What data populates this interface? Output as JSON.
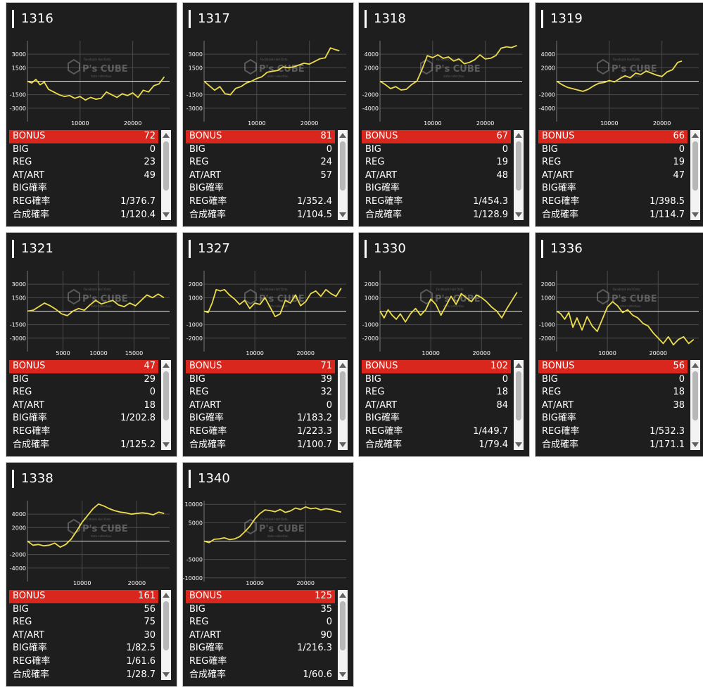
{
  "watermark": {
    "name": "P's CUBE",
    "tagline": "Facebook Hall Data",
    "sub": "data collection"
  },
  "colors": {
    "line": "#ecdc4c",
    "bonus_bg": "#d9271e",
    "card_bg": "#1e1e1e"
  },
  "stat_labels": {
    "bonus": "BONUS",
    "big": "BIG",
    "reg": "REG",
    "at": "AT/ART",
    "big_rate": "BIG確率",
    "reg_rate": "REG確率",
    "total_rate": "合成確率"
  },
  "cards": [
    {
      "id": "1316",
      "stats": {
        "bonus": "72",
        "big": "0",
        "reg": "23",
        "at": "49",
        "big_rate": "",
        "reg_rate": "1/376.7",
        "total_rate": "1/120.4"
      }
    },
    {
      "id": "1317",
      "stats": {
        "bonus": "81",
        "big": "0",
        "reg": "24",
        "at": "57",
        "big_rate": "",
        "reg_rate": "1/352.4",
        "total_rate": "1/104.5"
      }
    },
    {
      "id": "1318",
      "stats": {
        "bonus": "67",
        "big": "0",
        "reg": "19",
        "at": "48",
        "big_rate": "",
        "reg_rate": "1/454.3",
        "total_rate": "1/128.9"
      }
    },
    {
      "id": "1319",
      "stats": {
        "bonus": "66",
        "big": "0",
        "reg": "19",
        "at": "47",
        "big_rate": "",
        "reg_rate": "1/398.5",
        "total_rate": "1/114.7"
      }
    },
    {
      "id": "1321",
      "stats": {
        "bonus": "47",
        "big": "29",
        "reg": "0",
        "at": "18",
        "big_rate": "1/202.8",
        "reg_rate": "",
        "total_rate": "1/125.2"
      }
    },
    {
      "id": "1327",
      "stats": {
        "bonus": "71",
        "big": "39",
        "reg": "32",
        "at": "0",
        "big_rate": "1/183.2",
        "reg_rate": "1/223.3",
        "total_rate": "1/100.7"
      }
    },
    {
      "id": "1330",
      "stats": {
        "bonus": "102",
        "big": "0",
        "reg": "18",
        "at": "84",
        "big_rate": "",
        "reg_rate": "1/449.7",
        "total_rate": "1/79.4"
      }
    },
    {
      "id": "1336",
      "stats": {
        "bonus": "56",
        "big": "0",
        "reg": "18",
        "at": "38",
        "big_rate": "",
        "reg_rate": "1/532.3",
        "total_rate": "1/171.1"
      }
    },
    {
      "id": "1338",
      "stats": {
        "bonus": "161",
        "big": "56",
        "reg": "75",
        "at": "30",
        "big_rate": "1/82.5",
        "reg_rate": "1/61.6",
        "total_rate": "1/28.7"
      }
    },
    {
      "id": "1340",
      "stats": {
        "bonus": "125",
        "big": "35",
        "reg": "0",
        "at": "90",
        "big_rate": "1/216.3",
        "reg_rate": "",
        "total_rate": "1/60.6"
      }
    }
  ],
  "chart_data": [
    {
      "type": "line",
      "title": "1316",
      "xlim": [
        0,
        27000
      ],
      "ylim": [
        -4500,
        4500
      ],
      "yticks": [
        3000,
        1500,
        -1500,
        -3000
      ],
      "ytick_labels": [
        "3000",
        "1500",
        "-1500",
        "-3000"
      ],
      "xticks": [
        10000,
        20000
      ],
      "xtick_labels": [
        "10000",
        "20000"
      ],
      "x": [
        0,
        800,
        1600,
        2400,
        3200,
        4000,
        5000,
        6000,
        7000,
        8000,
        9000,
        10000,
        11000,
        12000,
        13000,
        14000,
        15000,
        16000,
        17000,
        18000,
        19000,
        20000,
        21000,
        22000,
        23000,
        24000,
        25000,
        26000
      ],
      "y": [
        0,
        -200,
        200,
        -400,
        -100,
        -900,
        -1200,
        -1500,
        -1700,
        -1600,
        -1900,
        -1700,
        -2100,
        -1800,
        -2000,
        -1900,
        -1200,
        -1500,
        -1800,
        -1400,
        -1600,
        -1300,
        -1800,
        -1000,
        -1200,
        -500,
        -300,
        500
      ]
    },
    {
      "type": "line",
      "title": "1317",
      "xlim": [
        0,
        27000
      ],
      "ylim": [
        -4500,
        4500
      ],
      "yticks": [
        3000,
        1500,
        -1500,
        -3000
      ],
      "ytick_labels": [
        "3000",
        "1500",
        "-1500",
        "-3000"
      ],
      "xticks": [
        10000,
        20000
      ],
      "xtick_labels": [
        "10000",
        "20000"
      ],
      "x": [
        0,
        1000,
        2000,
        3000,
        4000,
        5000,
        6000,
        7000,
        8000,
        9000,
        10000,
        11000,
        12000,
        13000,
        14000,
        15000,
        16000,
        17000,
        18000,
        19000,
        20000,
        21000,
        22000,
        23000,
        24000,
        25000,
        25700
      ],
      "y": [
        0,
        -500,
        -1000,
        -600,
        -1400,
        -1500,
        -800,
        -600,
        -200,
        0,
        300,
        500,
        1000,
        1100,
        1200,
        1600,
        1500,
        1600,
        1800,
        2000,
        1900,
        2200,
        2500,
        2600,
        3700,
        3500,
        3400
      ]
    },
    {
      "type": "line",
      "title": "1318",
      "xlim": [
        0,
        27000
      ],
      "ylim": [
        -6000,
        6000
      ],
      "yticks": [
        4000,
        2000,
        -2000,
        -4000
      ],
      "ytick_labels": [
        "4000",
        "2000",
        "-2000",
        "-4000"
      ],
      "xticks": [
        10000,
        20000
      ],
      "xtick_labels": [
        "10000",
        "20000"
      ],
      "x": [
        0,
        1000,
        2000,
        3000,
        4000,
        5000,
        6000,
        7000,
        8000,
        9000,
        10000,
        11000,
        12000,
        13000,
        14000,
        15000,
        16000,
        17000,
        18000,
        19000,
        20000,
        21000,
        22000,
        23000,
        24000,
        25000,
        26000
      ],
      "y": [
        0,
        -500,
        -1100,
        -800,
        -1300,
        -1200,
        -500,
        0,
        1800,
        3800,
        3500,
        3900,
        3400,
        3600,
        3000,
        3300,
        2600,
        2800,
        3200,
        3900,
        3300,
        3400,
        3800,
        4900,
        5100,
        5000,
        5300
      ]
    },
    {
      "type": "line",
      "title": "1319",
      "xlim": [
        0,
        27000
      ],
      "ylim": [
        -6000,
        6000
      ],
      "yticks": [
        4000,
        2000,
        -2000,
        -4000
      ],
      "ytick_labels": [
        "4000",
        "2000",
        "-2000",
        "-4000"
      ],
      "xticks": [
        10000,
        20000
      ],
      "xtick_labels": [
        "10000",
        "20000"
      ],
      "x": [
        0,
        1000,
        2000,
        3000,
        4000,
        5000,
        6000,
        7000,
        8000,
        9000,
        10000,
        11000,
        12000,
        13000,
        14000,
        15000,
        16000,
        17000,
        18000,
        19000,
        20000,
        21000,
        22000,
        23000,
        23800
      ],
      "y": [
        0,
        -500,
        -900,
        -1100,
        -1300,
        -1500,
        -1200,
        -700,
        -300,
        -200,
        100,
        -100,
        400,
        800,
        500,
        1200,
        1000,
        1500,
        1200,
        900,
        700,
        1400,
        1700,
        2800,
        3000
      ]
    },
    {
      "type": "line",
      "title": "1321",
      "xlim": [
        0,
        20000
      ],
      "ylim": [
        -4500,
        4500
      ],
      "yticks": [
        3000,
        1500,
        -1500,
        -3000
      ],
      "ytick_labels": [
        "3000",
        "1500",
        "-1500",
        "-3000"
      ],
      "xticks": [
        5000,
        10000,
        15000
      ],
      "xtick_labels": [
        "5000",
        "10000",
        "15000"
      ],
      "x": [
        0,
        800,
        1600,
        2400,
        3200,
        4000,
        4800,
        5600,
        6400,
        7200,
        8000,
        8800,
        9600,
        10400,
        11200,
        12000,
        12800,
        13600,
        14400,
        15200,
        16000,
        16800,
        17600,
        18400,
        19200
      ],
      "y": [
        0,
        100,
        500,
        900,
        600,
        200,
        -300,
        -500,
        0,
        300,
        100,
        700,
        1200,
        800,
        1000,
        1200,
        700,
        500,
        900,
        600,
        1200,
        1800,
        1500,
        1900,
        1500
      ]
    },
    {
      "type": "line",
      "title": "1327",
      "xlim": [
        0,
        28000
      ],
      "ylim": [
        -3000,
        3000
      ],
      "yticks": [
        2000,
        1000,
        -1000,
        -2000
      ],
      "ytick_labels": [
        "2000",
        "1000",
        "-1000",
        "-2000"
      ],
      "xticks": [
        10000,
        20000
      ],
      "xtick_labels": [
        "10000",
        "20000"
      ],
      "x": [
        0,
        800,
        1600,
        2400,
        3200,
        4000,
        5000,
        6000,
        7000,
        8000,
        9000,
        10000,
        11000,
        12000,
        13000,
        14000,
        15000,
        16000,
        17000,
        18000,
        19000,
        20000,
        21000,
        22000,
        23000,
        24000,
        25000,
        26000,
        27000
      ],
      "y": [
        0,
        -100,
        600,
        1600,
        1500,
        1600,
        1200,
        900,
        500,
        800,
        200,
        600,
        500,
        1000,
        300,
        -400,
        -200,
        800,
        600,
        1200,
        400,
        700,
        1300,
        1500,
        1100,
        1600,
        1300,
        1100,
        1700
      ]
    },
    {
      "type": "line",
      "title": "1330",
      "xlim": [
        0,
        28000
      ],
      "ylim": [
        -3000,
        3000
      ],
      "yticks": [
        2000,
        1000,
        -1000,
        -2000
      ],
      "ytick_labels": [
        "2000",
        "1000",
        "-1000",
        "-2000"
      ],
      "xticks": [
        10000,
        20000
      ],
      "xtick_labels": [
        "10000",
        "20000"
      ],
      "x": [
        0,
        800,
        1600,
        2400,
        3200,
        4000,
        5000,
        6000,
        7000,
        8000,
        9000,
        10000,
        11000,
        12000,
        13000,
        14000,
        15000,
        16000,
        17000,
        18000,
        19000,
        20000,
        21000,
        22000,
        23000,
        24000,
        25000,
        26000,
        27000
      ],
      "y": [
        0,
        -500,
        100,
        -300,
        -600,
        -200,
        -800,
        -200,
        200,
        -300,
        100,
        900,
        500,
        -300,
        400,
        1100,
        500,
        1300,
        1000,
        700,
        1200,
        1000,
        700,
        300,
        0,
        -500,
        200,
        800,
        1400
      ]
    },
    {
      "type": "line",
      "title": "1336",
      "xlim": [
        0,
        28000
      ],
      "ylim": [
        -3000,
        3000
      ],
      "yticks": [
        2000,
        1000,
        -1000,
        -2000
      ],
      "ytick_labels": [
        "2000",
        "1000",
        "-1000",
        "-2000"
      ],
      "xticks": [
        10000,
        20000
      ],
      "xtick_labels": [
        "10000",
        "20000"
      ],
      "x": [
        0,
        800,
        1600,
        2400,
        3200,
        4000,
        5000,
        6000,
        7000,
        8000,
        9000,
        10000,
        11000,
        12000,
        13000,
        14000,
        15000,
        16000,
        17000,
        18000,
        19000,
        20000,
        21000,
        22000,
        23000,
        24000,
        25000,
        26000,
        27000
      ],
      "y": [
        0,
        -200,
        -600,
        -100,
        -1200,
        -500,
        -1400,
        -400,
        -1100,
        -1500,
        -600,
        300,
        700,
        400,
        -100,
        100,
        -300,
        -500,
        -900,
        -1100,
        -1600,
        -2000,
        -2400,
        -1900,
        -2500,
        -2100,
        -1900,
        -2400,
        -2100
      ]
    },
    {
      "type": "line",
      "title": "1338",
      "xlim": [
        0,
        26000
      ],
      "ylim": [
        -6000,
        6000
      ],
      "yticks": [
        4000,
        2000,
        -2000,
        -4000
      ],
      "ytick_labels": [
        "4000",
        "2000",
        "-2000",
        "-4000"
      ],
      "xticks": [
        10000,
        20000
      ],
      "xtick_labels": [
        "10000",
        "20000"
      ],
      "x": [
        0,
        1000,
        2000,
        3000,
        4000,
        5000,
        6000,
        7000,
        8000,
        9000,
        10000,
        11000,
        12000,
        13000,
        14000,
        15000,
        16000,
        17000,
        18000,
        19000,
        20000,
        21000,
        22000,
        23000,
        24000,
        25000
      ],
      "y": [
        0,
        -600,
        -500,
        -700,
        -600,
        -300,
        -900,
        -500,
        300,
        1500,
        2800,
        3800,
        4800,
        5500,
        5200,
        4800,
        4500,
        4300,
        4200,
        4000,
        4100,
        4200,
        4100,
        3900,
        4300,
        4100
      ]
    },
    {
      "type": "line",
      "title": "1340",
      "xlim": [
        0,
        28000
      ],
      "ylim": [
        -11000,
        11000
      ],
      "yticks": [
        10000,
        5000,
        -5000,
        -10000
      ],
      "ytick_labels": [
        "10000",
        "5000",
        "-5000",
        "-10000"
      ],
      "xticks": [
        10000,
        20000
      ],
      "xtick_labels": [
        "10000",
        "20000"
      ],
      "x": [
        0,
        1000,
        2000,
        3000,
        4000,
        5000,
        6000,
        7000,
        8000,
        9000,
        10000,
        11000,
        12000,
        13000,
        14000,
        15000,
        16000,
        17000,
        18000,
        19000,
        20000,
        21000,
        22000,
        23000,
        24000,
        25000,
        26000,
        27000
      ],
      "y": [
        0,
        -400,
        500,
        600,
        900,
        400,
        600,
        1200,
        2500,
        4000,
        6000,
        7500,
        8500,
        8300,
        8000,
        8600,
        7800,
        8200,
        9000,
        8600,
        9300,
        8800,
        9000,
        8500,
        8800,
        8600,
        8200,
        7900
      ]
    }
  ]
}
